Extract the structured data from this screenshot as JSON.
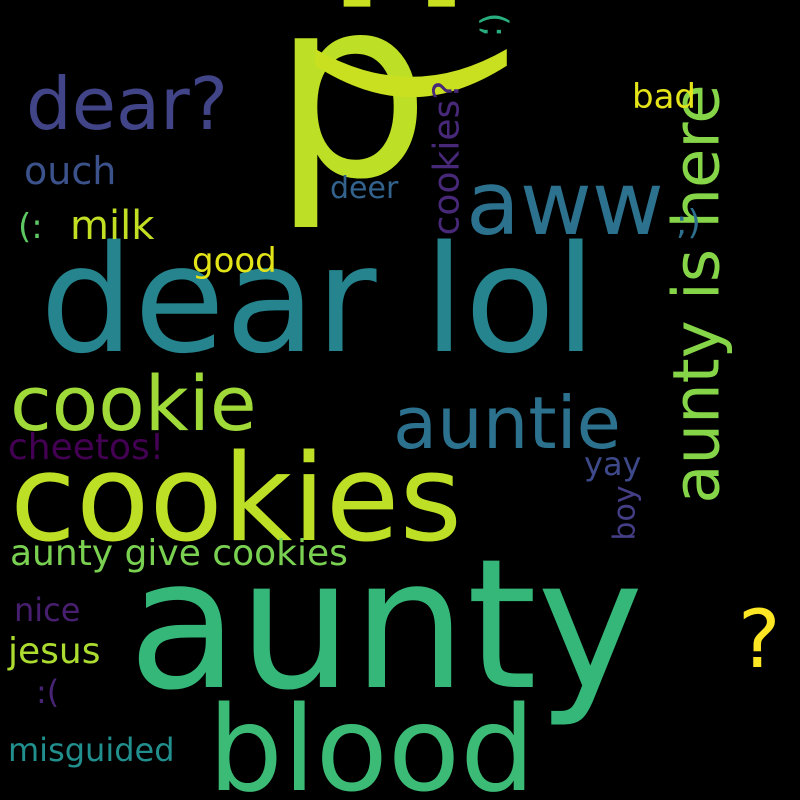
{
  "background": "#000000",
  "words": [
    {
      "text": "aunty",
      "color": "#35b779"
    },
    {
      "text": "dear lol",
      "color": "#25848e"
    },
    {
      "text": "cookies",
      "color": "#bddf26"
    },
    {
      "text": "p",
      "color": "#bddf26"
    },
    {
      "text": ":)",
      "color": "#c8e020"
    },
    {
      "text": "blood",
      "color": "#3bbb75"
    },
    {
      "text": "aww",
      "color": "#2c728e"
    },
    {
      "text": "cookie",
      "color": "#a0da39"
    },
    {
      "text": "auntie",
      "color": "#2c728e"
    },
    {
      "text": "aunty is here",
      "color": "#86d549"
    },
    {
      "text": "dear?",
      "color": "#414487"
    },
    {
      "text": "?",
      "color": "#fde725"
    },
    {
      "text": "aunty give cookies",
      "color": "#7ad151"
    },
    {
      "text": "cookies?",
      "color": "#482878"
    },
    {
      "text": "milk",
      "color": "#c2df23"
    },
    {
      "text": "good",
      "color": "#e2e418"
    },
    {
      "text": "bad",
      "color": "#e5e419"
    },
    {
      "text": "ouch",
      "color": "#3b528b"
    },
    {
      "text": "deer",
      "color": "#33638d"
    },
    {
      "text": ";)",
      "color": "#2e6f8e"
    },
    {
      "text": "(;",
      "color": "#29af7f"
    },
    {
      "text": "(:",
      "color": "#5ec962"
    },
    {
      "text": "cheetos!",
      "color": "#440154"
    },
    {
      "text": "yay",
      "color": "#3e4989"
    },
    {
      "text": "boy",
      "color": "#433e85"
    },
    {
      "text": "nice",
      "color": "#481f70"
    },
    {
      "text": "jesus",
      "color": "#addc30"
    },
    {
      "text": ":(",
      "color": "#482475"
    },
    {
      "text": "misguided",
      "color": "#218f8d"
    }
  ]
}
